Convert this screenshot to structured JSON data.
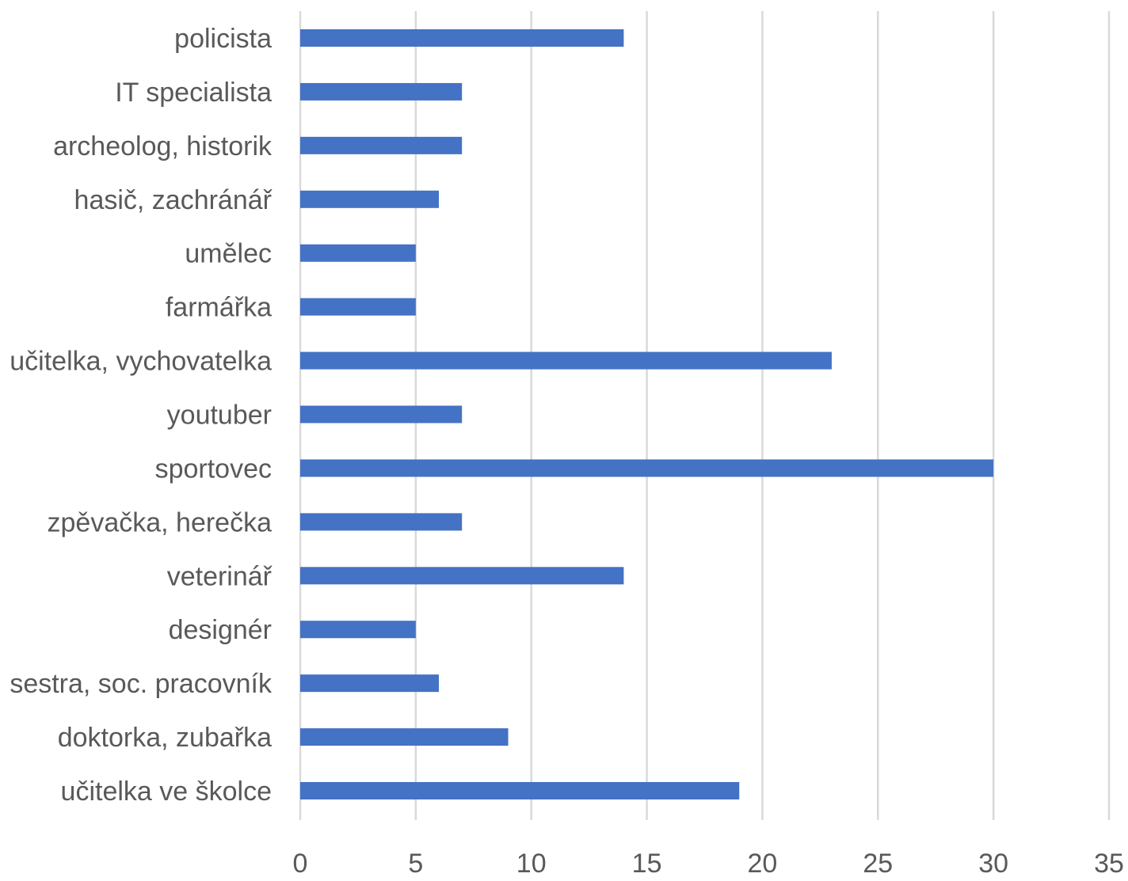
{
  "chart_data": {
    "type": "bar",
    "orientation": "horizontal",
    "title": "",
    "xlabel": "",
    "ylabel": "",
    "categories": [
      "policista",
      "IT specialista",
      "archeolog, historik",
      "hasič, zachránář",
      "umělec",
      "farmářka",
      "učitelka, vychovatelka",
      "youtuber",
      "sportovec",
      "zpěvačka, herečka",
      "veterinář",
      "designér",
      "sestra, soc. pracovník",
      "doktorka, zubařka",
      "učitelka ve školce"
    ],
    "values": [
      14,
      7,
      7,
      6,
      5,
      5,
      23,
      7,
      30,
      7,
      14,
      5,
      6,
      9,
      19
    ],
    "xlim": [
      0,
      35
    ],
    "xticks": [
      "0",
      "5",
      "10",
      "15",
      "20",
      "25",
      "30",
      "35"
    ],
    "grid": "vertical",
    "legend": "none",
    "colors": {
      "bar": "#4472c4",
      "grid": "#d9d9d9",
      "label": "#595959"
    }
  }
}
